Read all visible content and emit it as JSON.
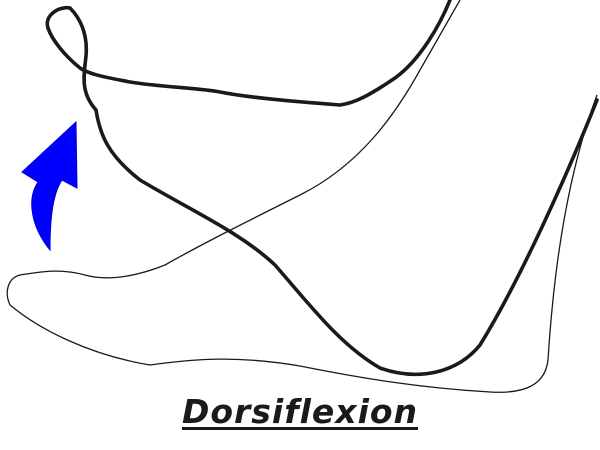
{
  "caption": "Dorsiflexion",
  "colors": {
    "outline": "#1a1a1a",
    "arrow": "#0000ff",
    "background": "#ffffff"
  },
  "icons": {
    "arrow": "curved-up-arrow-icon"
  }
}
